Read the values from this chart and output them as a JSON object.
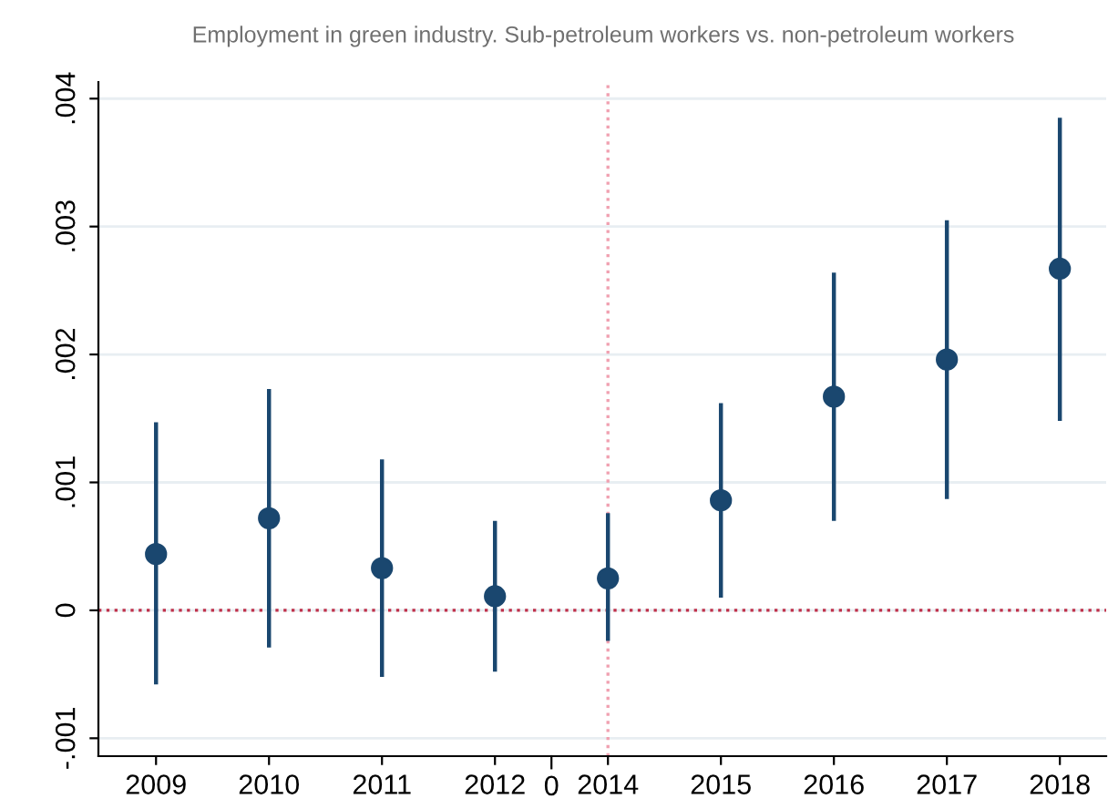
{
  "chart_data": {
    "type": "scatter",
    "title": "Employment in green industry. Sub-petroleum workers vs. non-petroleum workers",
    "categories": [
      "2009",
      "2010",
      "2011",
      "2012",
      "2014",
      "2015",
      "2016",
      "2017",
      "2018"
    ],
    "series": [
      {
        "color": "#1a476f",
        "values": [
          0.00044,
          0.00072,
          0.00033,
          0.00011,
          0.00025,
          0.00086,
          0.00167,
          0.00196,
          0.00267
        ],
        "errors": [
          [
            -0.00058,
            0.00147
          ],
          [
            -0.00029,
            0.00173
          ],
          [
            -0.00052,
            0.00118
          ],
          [
            -0.00048,
            0.0007
          ],
          [
            -0.00024,
            0.00076
          ],
          [
            0.0001,
            0.00162
          ],
          [
            0.0007,
            0.00264
          ],
          [
            0.00087,
            0.00305
          ],
          [
            0.00148,
            0.00385
          ]
        ]
      }
    ],
    "ylim": [
      -0.00114,
      0.00413
    ],
    "yticks": [
      {
        "value": -0.001,
        "label": "-.001"
      },
      {
        "value": 0,
        "label": "0"
      },
      {
        "value": 0.001,
        "label": ".001"
      },
      {
        "value": 0.002,
        "label": ".002"
      },
      {
        "value": 0.003,
        "label": ".003"
      },
      {
        "value": 0.004,
        "label": ".004"
      }
    ],
    "annotations": [
      "0"
    ],
    "grid": "y",
    "marker": "circle",
    "ref_lines": [
      {
        "axis": "y",
        "value": 0,
        "color": "#c0304a",
        "line_style": "dotted"
      },
      {
        "axis": "x",
        "value": "2014",
        "color": "#f0a0b0",
        "line_style": "dotted"
      }
    ]
  }
}
